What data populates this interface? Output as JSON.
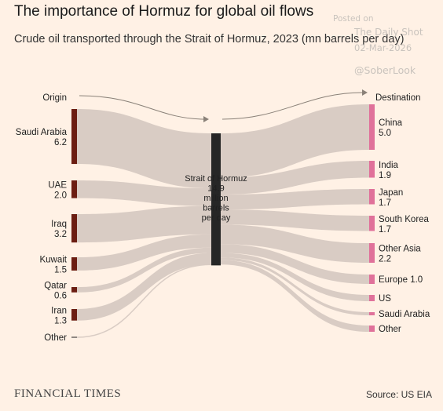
{
  "title": "The importance of Hormuz for global oil flows",
  "subtitle": "Crude oil transported through the Strait of Hormuz, 2023 (mn barrels per day)",
  "watermark": {
    "posted": "Posted on",
    "site": "The Daily Shot",
    "date": "02-Mar-2026",
    "handle": "@SoberLook"
  },
  "footer": {
    "brand": "FINANCIAL TIMES",
    "source": "Source: US EIA"
  },
  "colors": {
    "background": "#fff1e5",
    "flow": "#d9ccc4",
    "origin_bar": "#6b1d12",
    "strait_bar": "#262626",
    "destination_bar": "#e0719a"
  },
  "chart_data": {
    "type": "sankey",
    "title": "The importance of Hormuz for global oil flows",
    "subtitle": "Crude oil transported through the Strait of Hormuz, 2023 (mn barrels per day)",
    "origin_header": "Origin",
    "destination_header": "Destination",
    "center": {
      "label_lines": [
        "Strait of Hormuz",
        "14.9",
        "million",
        "barrels",
        "per day"
      ],
      "value": 14.9
    },
    "origins": [
      {
        "name": "Saudi Arabia",
        "value": 6.2,
        "value_label": "6.2"
      },
      {
        "name": "UAE",
        "value": 2.0,
        "value_label": "2.0"
      },
      {
        "name": "Iraq",
        "value": 3.2,
        "value_label": "3.2"
      },
      {
        "name": "Kuwait",
        "value": 1.5,
        "value_label": "1.5"
      },
      {
        "name": "Qatar",
        "value": 0.6,
        "value_label": "0.6"
      },
      {
        "name": "Iran",
        "value": 1.3,
        "value_label": "1.3"
      },
      {
        "name": "Other",
        "value": 0.1,
        "value_label": ""
      }
    ],
    "destinations": [
      {
        "name": "China",
        "value": 5.0,
        "value_label": "5.0"
      },
      {
        "name": "India",
        "value": 1.9,
        "value_label": "1.9"
      },
      {
        "name": "Japan",
        "value": 1.7,
        "value_label": "1.7"
      },
      {
        "name": "South Korea",
        "value": 1.7,
        "value_label": "1.7"
      },
      {
        "name": "Other Asia",
        "value": 2.2,
        "value_label": "2.2"
      },
      {
        "name": "Europe",
        "value": 1.0,
        "value_label": "1.0"
      },
      {
        "name": "US",
        "value": 0.5,
        "value_label": ""
      },
      {
        "name": "Saudi Arabia",
        "value": 0.3,
        "value_label": ""
      },
      {
        "name": "Other",
        "value": 0.5,
        "value_label": ""
      }
    ]
  }
}
